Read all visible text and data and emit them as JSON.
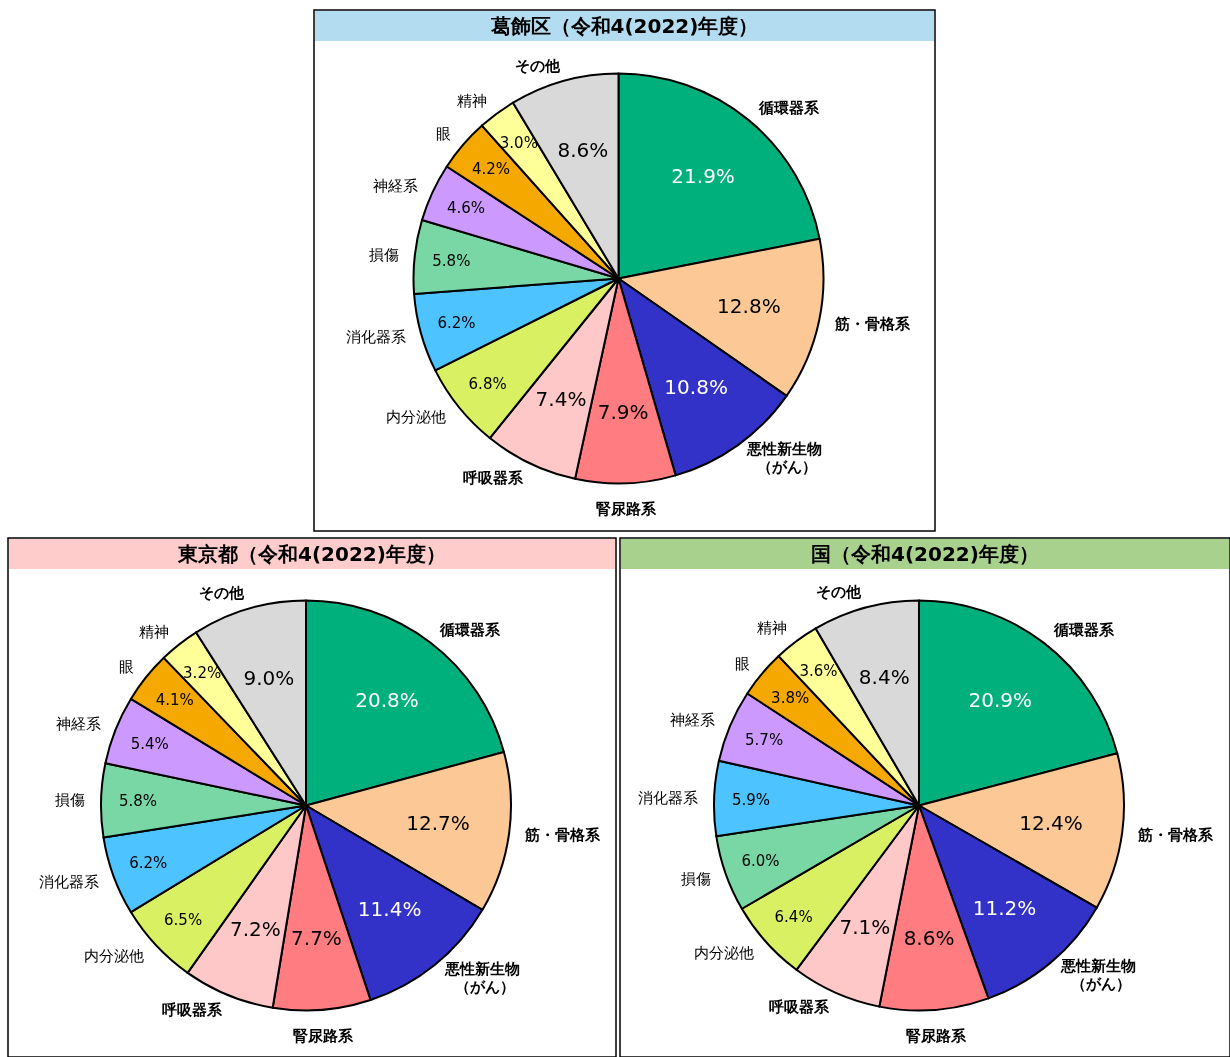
{
  "chart_data": [
    {
      "type": "pie",
      "title": "葛飾区（令和4(2022)年度）",
      "categories": [
        "循環器系",
        "筋・骨格系",
        "悪性新生物（がん）",
        "腎尿路系",
        "呼吸器系",
        "内分泌他",
        "消化器系",
        "損傷",
        "神経系",
        "眼",
        "精神",
        "その他"
      ],
      "values": [
        21.9,
        12.8,
        10.8,
        7.9,
        7.4,
        6.8,
        6.2,
        5.8,
        4.6,
        4.2,
        3.0,
        8.6
      ],
      "value_labels": [
        "21.9%",
        "12.8%",
        "10.8%",
        "7.9%",
        "7.4%",
        "6.8%",
        "6.2%",
        "5.8%",
        "4.6%",
        "4.2%",
        "3.0%",
        "8.6%"
      ],
      "colors": [
        "#00b07c",
        "#fcc996",
        "#3232c8",
        "#ff7c80",
        "#ffc8c8",
        "#d9f062",
        "#4dc3ff",
        "#78d7a5",
        "#cc99ff",
        "#f5a800",
        "#ffff99",
        "#d9d9d9"
      ],
      "legend": false
    },
    {
      "type": "pie",
      "title": "東京都（令和4(2022)年度）",
      "categories": [
        "循環器系",
        "筋・骨格系",
        "悪性新生物（がん）",
        "腎尿路系",
        "呼吸器系",
        "内分泌他",
        "消化器系",
        "損傷",
        "神経系",
        "眼",
        "精神",
        "その他"
      ],
      "values": [
        20.8,
        12.7,
        11.4,
        7.7,
        7.2,
        6.5,
        6.2,
        5.8,
        5.4,
        4.1,
        3.2,
        9.0
      ],
      "value_labels": [
        "20.8%",
        "12.7%",
        "11.4%",
        "7.7%",
        "7.2%",
        "6.5%",
        "6.2%",
        "5.8%",
        "5.4%",
        "4.1%",
        "3.2%",
        "9.0%"
      ],
      "colors": [
        "#00b07c",
        "#fcc996",
        "#3232c8",
        "#ff7c80",
        "#ffc8c8",
        "#d9f062",
        "#4dc3ff",
        "#78d7a5",
        "#cc99ff",
        "#f5a800",
        "#ffff99",
        "#d9d9d9"
      ],
      "legend": false
    },
    {
      "type": "pie",
      "title": "国（令和4(2022)年度）",
      "categories": [
        "循環器系",
        "筋・骨格系",
        "悪性新生物（がん）",
        "腎尿路系",
        "呼吸器系",
        "内分泌他",
        "損傷",
        "消化器系",
        "神経系",
        "眼",
        "精神",
        "その他"
      ],
      "values": [
        20.9,
        12.4,
        11.2,
        8.6,
        7.1,
        6.4,
        6.0,
        5.9,
        5.7,
        3.8,
        3.6,
        8.4
      ],
      "value_labels": [
        "20.9%",
        "12.4%",
        "11.2%",
        "8.6%",
        "7.1%",
        "6.4%",
        "6.0%",
        "5.9%",
        "5.7%",
        "3.8%",
        "3.6%",
        "8.4%"
      ],
      "colors": [
        "#00b07c",
        "#fcc996",
        "#3232c8",
        "#ff7c80",
        "#ffc8c8",
        "#d9f062",
        "#78d7a5",
        "#4dc3ff",
        "#cc99ff",
        "#f5a800",
        "#ffff99",
        "#d9d9d9"
      ],
      "legend": false
    }
  ]
}
